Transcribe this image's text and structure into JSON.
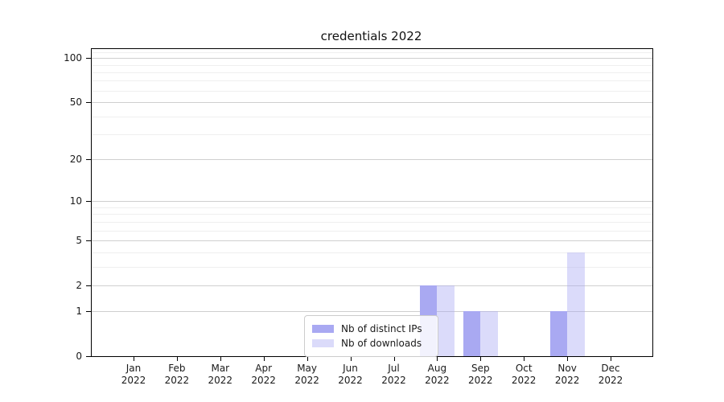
{
  "chart_data": {
    "type": "bar",
    "title": "credentials 2022",
    "xlabel": "",
    "ylabel": "",
    "yscale": "log1p",
    "ylim": [
      0,
      115
    ],
    "grid": "both",
    "legend_position": "lower center-left inside plot",
    "yticks": [
      0,
      1,
      2,
      5,
      10,
      20,
      50,
      100
    ],
    "yticks_minor": [
      3,
      4,
      6,
      7,
      8,
      9,
      30,
      40,
      60,
      70,
      80,
      90,
      110
    ],
    "categories": [
      {
        "month": "Jan",
        "year": "2022"
      },
      {
        "month": "Feb",
        "year": "2022"
      },
      {
        "month": "Mar",
        "year": "2022"
      },
      {
        "month": "Apr",
        "year": "2022"
      },
      {
        "month": "May",
        "year": "2022"
      },
      {
        "month": "Jun",
        "year": "2022"
      },
      {
        "month": "Jul",
        "year": "2022"
      },
      {
        "month": "Aug",
        "year": "2022"
      },
      {
        "month": "Sep",
        "year": "2022"
      },
      {
        "month": "Oct",
        "year": "2022"
      },
      {
        "month": "Nov",
        "year": "2022"
      },
      {
        "month": "Dec",
        "year": "2022"
      }
    ],
    "series": [
      {
        "name": "Nb of distinct IPs",
        "color": "#a9a9f2",
        "values": [
          0,
          0,
          0,
          0,
          0,
          0,
          0,
          2,
          1,
          0,
          1,
          0
        ]
      },
      {
        "name": "Nb of downloads",
        "color": "rgba(169,169,242,0.42)",
        "values": [
          0,
          0,
          0,
          0,
          0,
          0,
          0,
          2,
          1,
          0,
          4,
          0
        ]
      }
    ]
  },
  "colors": {
    "background": "#ffffff",
    "spine": "#000000",
    "major_grid": "#cfcfcf",
    "minor_grid": "#efefef",
    "text": "#1a1a1a"
  }
}
